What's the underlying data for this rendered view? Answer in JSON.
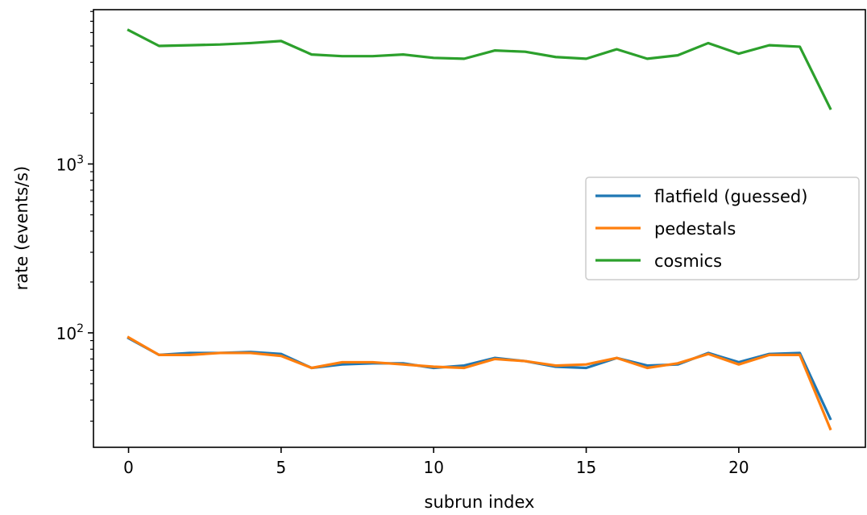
{
  "chart_data": {
    "type": "line",
    "xlabel": "subrun index",
    "ylabel": "rate (events/s)",
    "yscale": "log",
    "xlim": [
      -1.15,
      24.15
    ],
    "ylim": [
      21,
      8200
    ],
    "grid": false,
    "legend_position": "center-right",
    "x": [
      0,
      1,
      2,
      3,
      4,
      5,
      6,
      7,
      8,
      9,
      10,
      11,
      12,
      13,
      14,
      15,
      16,
      17,
      18,
      19,
      20,
      21,
      22,
      23
    ],
    "x_ticks": [
      0,
      5,
      10,
      15,
      20
    ],
    "y_ticks": [
      {
        "value": 100,
        "base": "10",
        "exp": "2"
      },
      {
        "value": 1000,
        "base": "10",
        "exp": "3"
      }
    ],
    "series": [
      {
        "name": "flatfield (guessed)",
        "color": "#1f77b4",
        "values": [
          93,
          74,
          76,
          76,
          77,
          75,
          62,
          65,
          66,
          66,
          62,
          64,
          71,
          68,
          63,
          62,
          71,
          64,
          65,
          76,
          67,
          75,
          76,
          31
        ]
      },
      {
        "name": "pedestals",
        "color": "#ff7f0e",
        "values": [
          94,
          74,
          74,
          76,
          76,
          73,
          62,
          67,
          67,
          65,
          63,
          62,
          70,
          68,
          64,
          65,
          71,
          62,
          66,
          75,
          65,
          74,
          74,
          27
        ]
      },
      {
        "name": "cosmics",
        "color": "#2ca02c",
        "values": [
          6200,
          5000,
          5050,
          5100,
          5200,
          5350,
          4450,
          4350,
          4350,
          4450,
          4250,
          4200,
          4700,
          4620,
          4300,
          4200,
          4780,
          4200,
          4400,
          5200,
          4500,
          5050,
          4950,
          2130
        ]
      }
    ]
  }
}
